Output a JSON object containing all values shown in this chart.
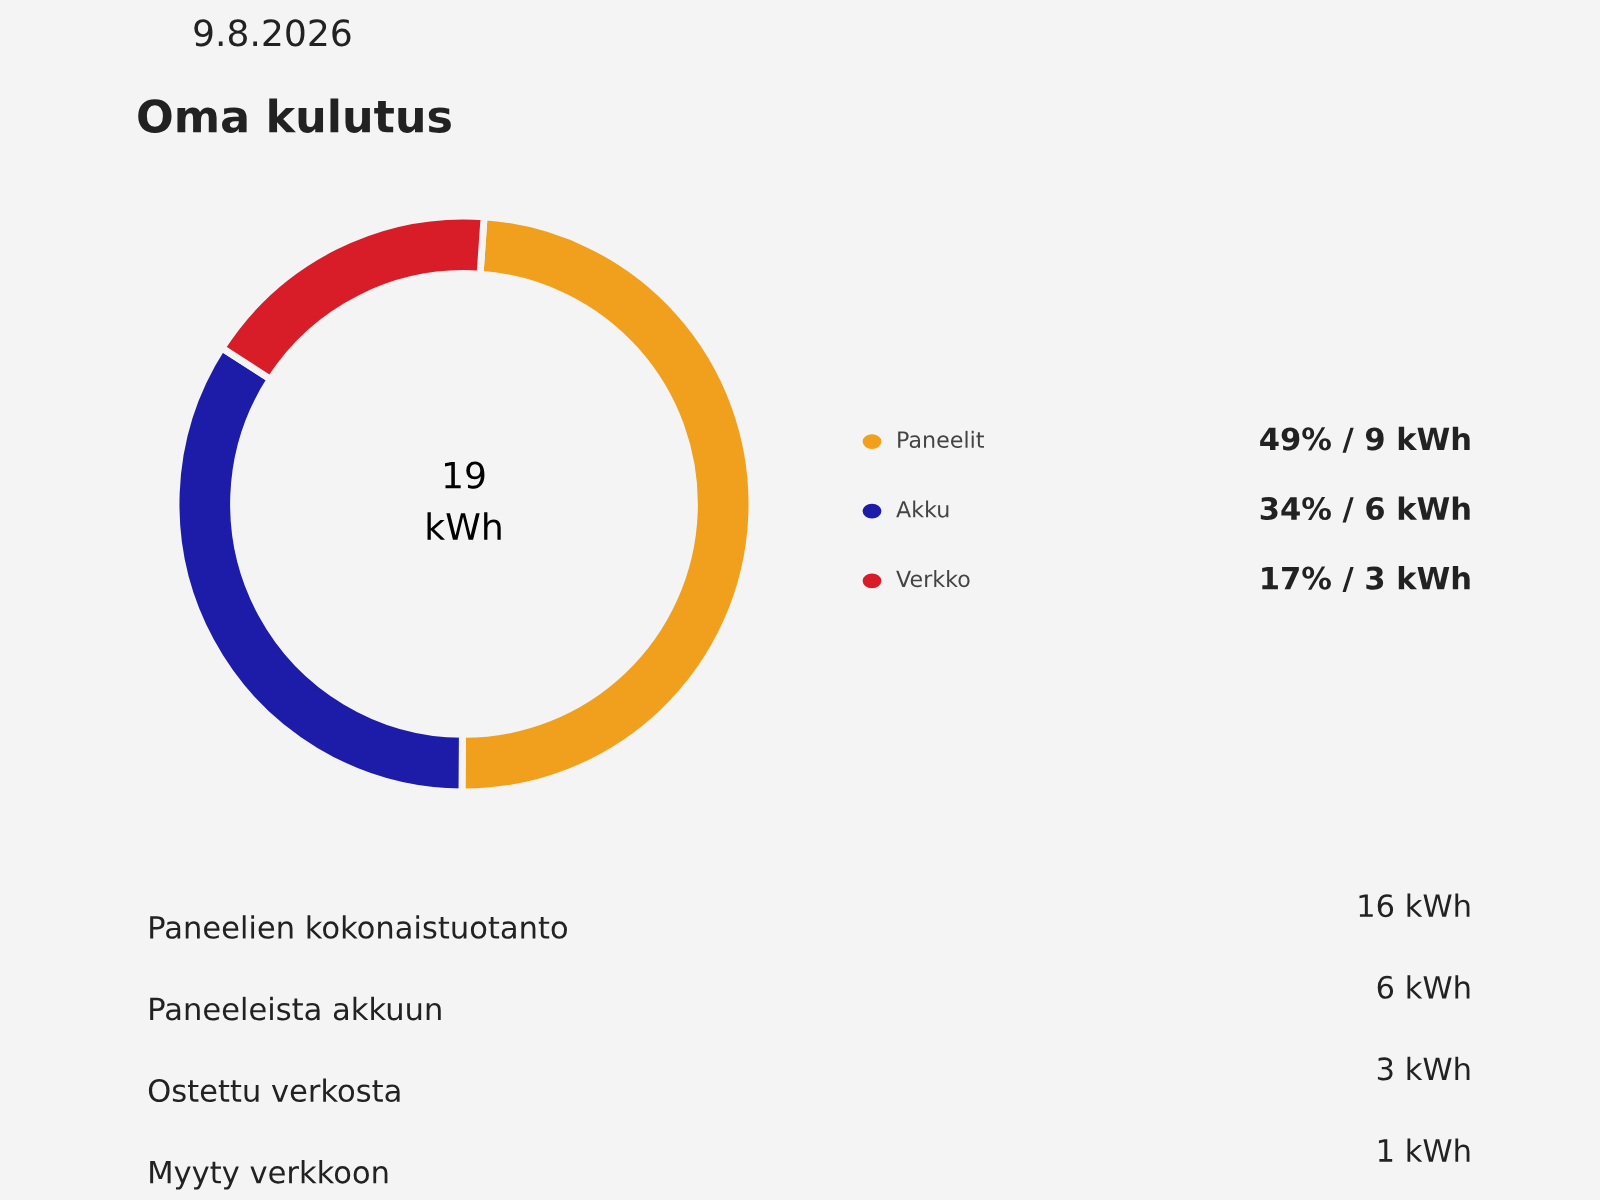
{
  "chart_data": {
    "type": "donut",
    "title": "Oma kulutus",
    "subtitle": "9.8.2026",
    "categories": [
      "Paneelit",
      "Akku",
      "Verkko"
    ],
    "values": [
      49,
      34,
      17
    ],
    "colors": [
      "#f0a01c",
      "#1c1ca8",
      "#d81c28"
    ],
    "value_labels": [
      "49% / 9 kWh",
      "34% / 6 kWh",
      "17% / 3 kWh"
    ],
    "legend": "right",
    "annotations": [
      "19\nkWh",
      "Paneelien kokonaistuotanto",
      "16 kWh",
      "Paneeleista akkuun",
      "6 kWh",
      "Ostettu verkosta",
      "3 kWh",
      "Myyty verkkoon",
      "1 kWh"
    ]
  }
}
